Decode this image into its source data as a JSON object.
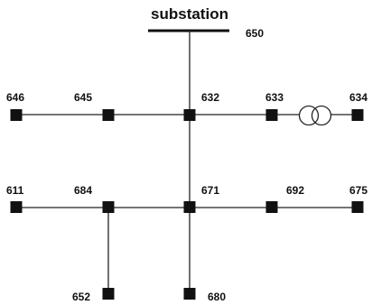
{
  "title": "substation",
  "nodes": [
    {
      "id": "650",
      "label": "650"
    },
    {
      "id": "646",
      "label": "646"
    },
    {
      "id": "645",
      "label": "645"
    },
    {
      "id": "632",
      "label": "632"
    },
    {
      "id": "633",
      "label": "633"
    },
    {
      "id": "634",
      "label": "634"
    },
    {
      "id": "611",
      "label": "611"
    },
    {
      "id": "684",
      "label": "684"
    },
    {
      "id": "671",
      "label": "671"
    },
    {
      "id": "692",
      "label": "692"
    },
    {
      "id": "675",
      "label": "675"
    },
    {
      "id": "652",
      "label": "652"
    },
    {
      "id": "680",
      "label": "680"
    }
  ],
  "connections": [
    [
      "650",
      "632"
    ],
    [
      "646",
      "645"
    ],
    [
      "645",
      "632"
    ],
    [
      "632",
      "633"
    ],
    [
      "633",
      "634",
      "transformer"
    ],
    [
      "632",
      "671"
    ],
    [
      "611",
      "684"
    ],
    [
      "684",
      "671"
    ],
    [
      "671",
      "692"
    ],
    [
      "692",
      "675"
    ],
    [
      "684",
      "652"
    ],
    [
      "671",
      "680"
    ]
  ],
  "colors": {
    "line": "#222222",
    "node": "#111111",
    "background": "#ffffff"
  }
}
